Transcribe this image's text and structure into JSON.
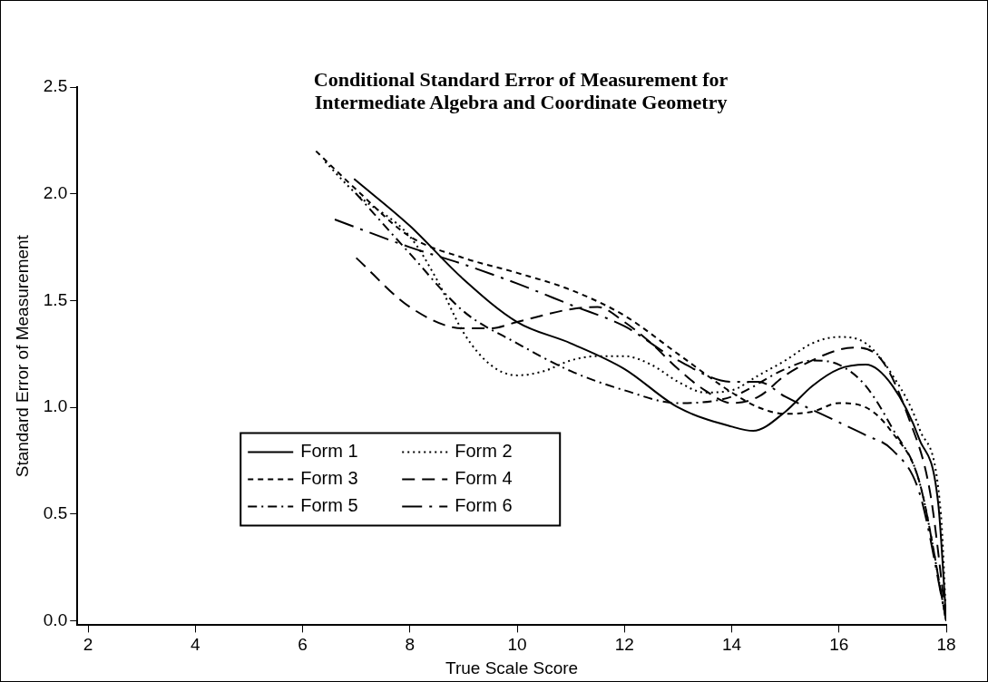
{
  "chart_data": {
    "type": "line",
    "title": "Conditional Standard Error of Measurement for\nIntermediate Algebra and Coordinate Geometry",
    "xlabel": "True Scale Score",
    "ylabel": "Standard Error of Measurement",
    "xlim": [
      1.8,
      18
    ],
    "xticks": [
      2,
      4,
      6,
      8,
      10,
      12,
      14,
      16,
      18
    ],
    "ylim": [
      -0.02,
      2.5
    ],
    "yticks": [
      {
        "value": 0,
        "label": "0.0"
      },
      0.5,
      {
        "value": 1,
        "label": "1.0"
      },
      1.5,
      {
        "value": 2,
        "label": "2.0"
      },
      2.5
    ],
    "grid": false,
    "legend": "bottom left",
    "marker": "none",
    "series": [
      {
        "name": "Form 1",
        "color": "#000000",
        "line_style": "solid",
        "x": [
          6.96,
          8,
          9,
          10,
          11,
          12,
          13,
          14,
          14.4,
          15,
          15.5,
          16,
          16.5,
          17,
          17.5,
          17.85,
          18
        ],
        "values": [
          2.07,
          1.85,
          1.6,
          1.4,
          1.3,
          1.18,
          1.0,
          0.91,
          0.89,
          0.98,
          1.1,
          1.18,
          1.2,
          1.1,
          0.85,
          0.55,
          0.0
        ]
      },
      {
        "name": "Form 2",
        "color": "#000000",
        "line_style": "dotted",
        "x": [
          6.42,
          7,
          8,
          8.5,
          9,
          9.5,
          10,
          10.5,
          11,
          11.5,
          12,
          12.5,
          13,
          13.5,
          14,
          14.5,
          15,
          15.5,
          16,
          16.5,
          17,
          17.5,
          17.9,
          18
        ],
        "values": [
          2.15,
          2.0,
          1.8,
          1.6,
          1.35,
          1.2,
          1.15,
          1.17,
          1.22,
          1.24,
          1.24,
          1.2,
          1.12,
          1.07,
          1.08,
          1.15,
          1.22,
          1.3,
          1.33,
          1.3,
          1.15,
          0.9,
          0.5,
          0.0
        ]
      },
      {
        "name": "Form 3",
        "color": "#000000",
        "line_style": "shortdash",
        "x": [
          6.25,
          7,
          8,
          9,
          10,
          11,
          12,
          13,
          14,
          14.5,
          15,
          15.5,
          16,
          16.5,
          17,
          17.5,
          18
        ],
        "values": [
          2.2,
          2.02,
          1.8,
          1.7,
          1.63,
          1.55,
          1.43,
          1.25,
          1.07,
          1.0,
          0.97,
          0.98,
          1.02,
          1.0,
          0.88,
          0.65,
          0.0
        ]
      },
      {
        "name": "Form 4",
        "color": "#000000",
        "line_style": "dashed",
        "x": [
          7,
          8,
          9,
          9.5,
          10,
          11,
          11.5,
          12,
          12.5,
          13,
          13.5,
          14,
          14.5,
          15,
          15.5,
          16,
          16.3,
          16.8,
          17.3,
          17.7,
          18
        ],
        "values": [
          1.7,
          1.47,
          1.37,
          1.37,
          1.4,
          1.46,
          1.47,
          1.4,
          1.3,
          1.18,
          1.08,
          1.02,
          1.05,
          1.15,
          1.22,
          1.27,
          1.28,
          1.22,
          0.95,
          0.6,
          0.0
        ]
      },
      {
        "name": "Form 5",
        "color": "#000000",
        "line_style": "dashdot",
        "x": [
          7,
          8,
          9,
          10,
          11,
          12,
          13,
          14,
          15,
          15.5,
          16,
          16.5,
          17,
          17.5,
          18
        ],
        "values": [
          2.0,
          1.72,
          1.45,
          1.3,
          1.17,
          1.08,
          1.02,
          1.05,
          1.18,
          1.22,
          1.2,
          1.1,
          0.9,
          0.65,
          0.0
        ]
      },
      {
        "name": "Form 6",
        "color": "#000000",
        "line_style": "longdashdot",
        "x": [
          6.6,
          8,
          9,
          10,
          11,
          12,
          13,
          14,
          14.5,
          15,
          16,
          16.5,
          17,
          17.5,
          18
        ],
        "values": [
          1.88,
          1.75,
          1.67,
          1.58,
          1.48,
          1.38,
          1.22,
          1.12,
          1.12,
          1.05,
          0.93,
          0.87,
          0.8,
          0.6,
          0.0
        ]
      }
    ]
  }
}
